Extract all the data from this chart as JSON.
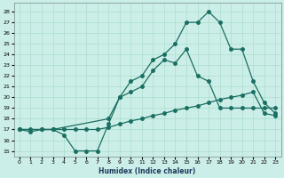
{
  "xlabel": "Humidex (Indice chaleur)",
  "bg_color": "#cceee8",
  "grid_color": "#aaddcc",
  "line_color": "#1a6e62",
  "xlim": [
    -0.5,
    23.5
  ],
  "ylim": [
    14.5,
    28.8
  ],
  "yticks": [
    15,
    16,
    17,
    18,
    19,
    20,
    21,
    22,
    23,
    24,
    25,
    26,
    27,
    28
  ],
  "xticks": [
    0,
    1,
    2,
    3,
    4,
    5,
    6,
    7,
    8,
    9,
    10,
    11,
    12,
    13,
    14,
    15,
    16,
    17,
    18,
    19,
    20,
    21,
    22,
    23
  ],
  "line1_x": [
    0,
    1,
    2,
    3,
    4,
    5,
    6,
    7,
    8,
    9,
    10,
    11,
    12,
    13,
    14,
    15,
    16,
    17,
    18,
    19,
    20,
    21,
    22,
    23
  ],
  "line1_y": [
    17.0,
    16.8,
    17.0,
    17.0,
    16.5,
    15.0,
    15.0,
    15.0,
    17.5,
    20.0,
    20.5,
    21.0,
    22.5,
    23.5,
    23.2,
    24.5,
    22.0,
    21.5,
    19.0,
    19.0,
    19.0,
    19.0,
    19.0,
    19.0
  ],
  "line2_x": [
    0,
    1,
    2,
    3,
    4,
    5,
    6,
    7,
    8,
    9,
    10,
    11,
    12,
    13,
    14,
    15,
    16,
    17,
    18,
    19,
    20,
    21,
    22,
    23
  ],
  "line2_y": [
    17.0,
    17.0,
    17.0,
    17.0,
    17.0,
    17.0,
    17.0,
    17.0,
    17.2,
    17.5,
    17.8,
    18.0,
    18.3,
    18.5,
    18.8,
    19.0,
    19.2,
    19.5,
    19.8,
    20.0,
    20.2,
    20.5,
    18.5,
    18.3
  ],
  "line3_x": [
    0,
    3,
    8,
    9,
    10,
    11,
    12,
    13,
    14,
    15,
    16,
    17,
    18,
    19,
    20,
    21,
    22,
    23
  ],
  "line3_y": [
    17.0,
    17.0,
    18.0,
    20.0,
    21.5,
    22.0,
    23.5,
    24.0,
    25.0,
    27.0,
    27.0,
    28.0,
    27.0,
    24.5,
    24.5,
    21.5,
    19.5,
    18.5
  ]
}
